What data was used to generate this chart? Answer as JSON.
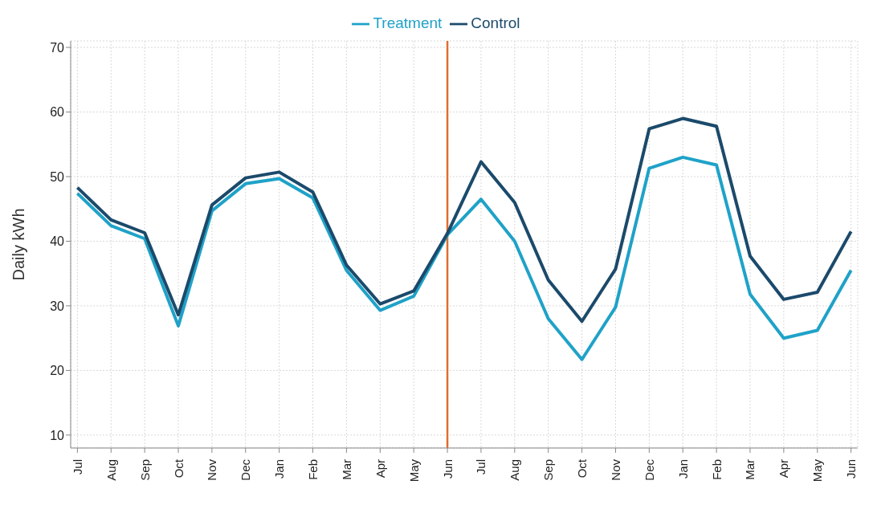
{
  "chart_data": {
    "type": "line",
    "ylabel": "Daily kWh",
    "categories": [
      "Jul",
      "Aug",
      "Sep",
      "Oct",
      "Nov",
      "Dec",
      "Jan",
      "Feb",
      "Mar",
      "Apr",
      "May",
      "Jun",
      "Jul",
      "Aug",
      "Sep",
      "Oct",
      "Nov",
      "Dec",
      "Jan",
      "Feb",
      "Mar",
      "Apr",
      "May",
      "Jun"
    ],
    "series": [
      {
        "name": "Treatment",
        "color": "#1fa2c8",
        "values": [
          47.4,
          42.4,
          40.4,
          26.9,
          44.7,
          48.9,
          49.7,
          46.7,
          35.5,
          29.3,
          31.5,
          41,
          46.5,
          40,
          28,
          21.7,
          29.8,
          51.3,
          53,
          51.8,
          31.8,
          25,
          26.2,
          35.5
        ]
      },
      {
        "name": "Control",
        "color": "#1b4a6b",
        "values": [
          48.3,
          43.3,
          41.3,
          28.6,
          45.6,
          49.8,
          50.7,
          47.6,
          36.3,
          30.3,
          32.3,
          41.2,
          52.3,
          46,
          34,
          27.6,
          35.7,
          57.4,
          59,
          57.8,
          37.7,
          31,
          32.1,
          41.5
        ]
      }
    ],
    "ylim": [
      8,
      71
    ],
    "yticks": [
      10,
      20,
      30,
      40,
      50,
      60,
      70
    ],
    "grid": true,
    "legend": "top",
    "marker": "none",
    "line_style": "solid",
    "ref_lines": [
      {
        "axis": "x",
        "value": "Jun",
        "color": "#e06c2e"
      }
    ]
  }
}
